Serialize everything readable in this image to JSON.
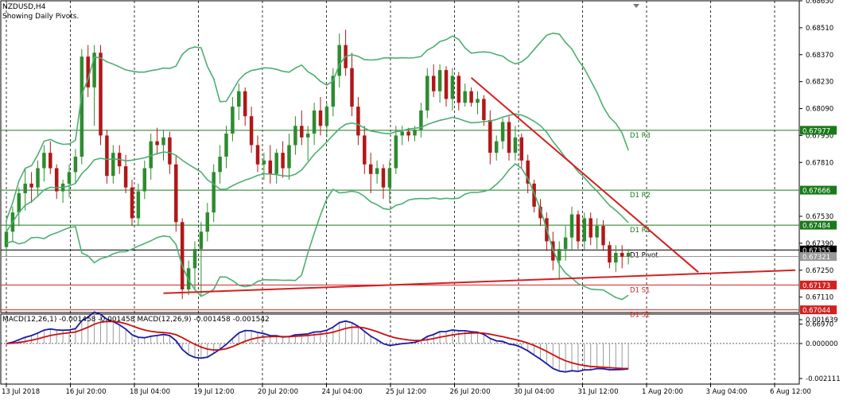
{
  "chart_title": "NZDUSD,H4",
  "chart_subtitle": "Showing Daily Pivots.",
  "macd_label": "MACD(12,26,1) -0.001458 -0.001458 MACD(12,26,9) -0.001458 -0.001542",
  "colors": {
    "bull_candle": "#2e8b2e",
    "bear_candle": "#b01818",
    "bollinger": "#4caf72",
    "resistance": "#1a7a1a",
    "support": "#d42020",
    "pivot": "#000000",
    "trendline": "#d42020",
    "macd_main": "#1a1aa8",
    "macd_signal": "#cc1010",
    "macd_hist": "#9a9a9a"
  },
  "chart_data": {
    "type": "candlestick",
    "symbol": "NZDUSD",
    "timeframe": "H4",
    "y_range": [
      0.6703,
      0.6865
    ],
    "price_ticks": [
      "0.68650",
      "0.68510",
      "0.68370",
      "0.68230",
      "0.68090",
      "0.67950",
      "0.67810",
      "0.67530",
      "0.67390",
      "0.67250",
      "0.67110",
      "0.66970"
    ],
    "time_labels": [
      "13 Jul 2018",
      "16 Jul 20:00",
      "18 Jul 04:00",
      "19 Jul 12:00",
      "20 Jul 20:00",
      "24 Jul 04:00",
      "25 Jul 12:00",
      "26 Jul 20:00",
      "30 Jul 04:00",
      "31 Jul 12:00",
      "1 Aug 20:00",
      "3 Aug 04:00",
      "6 Aug 12:00"
    ],
    "pivot_levels": [
      {
        "name": "D1 R3",
        "value": "0.67977",
        "kind": "resistance"
      },
      {
        "name": "D1 R2",
        "value": "0.67666",
        "kind": "resistance"
      },
      {
        "name": "D1 R1",
        "value": "0.67484",
        "kind": "resistance"
      },
      {
        "name": "D1 Pivot",
        "value": "0.67355",
        "kind": "pivot"
      },
      {
        "name": "D1 S1",
        "value": "0.67173",
        "kind": "support"
      },
      {
        "name": "D1 S2",
        "value": "0.67044",
        "kind": "support"
      }
    ],
    "current_price": "0.67321",
    "candles": [
      [
        0.6737,
        0.675,
        0.6733,
        0.6745
      ],
      [
        0.6745,
        0.6758,
        0.674,
        0.6755
      ],
      [
        0.6755,
        0.6768,
        0.6748,
        0.6765
      ],
      [
        0.6765,
        0.6778,
        0.6756,
        0.677
      ],
      [
        0.677,
        0.6776,
        0.676,
        0.6768
      ],
      [
        0.6768,
        0.6782,
        0.6763,
        0.6778
      ],
      [
        0.6778,
        0.679,
        0.6771,
        0.6786
      ],
      [
        0.6786,
        0.6792,
        0.6775,
        0.6778
      ],
      [
        0.6778,
        0.678,
        0.6762,
        0.6766
      ],
      [
        0.6766,
        0.6772,
        0.676,
        0.677
      ],
      [
        0.677,
        0.678,
        0.6763,
        0.6776
      ],
      [
        0.6776,
        0.6788,
        0.677,
        0.6784
      ],
      [
        0.6784,
        0.684,
        0.678,
        0.6836
      ],
      [
        0.6836,
        0.6842,
        0.6815,
        0.682
      ],
      [
        0.682,
        0.6842,
        0.68,
        0.6838
      ],
      [
        0.6838,
        0.6842,
        0.679,
        0.6795
      ],
      [
        0.6795,
        0.6798,
        0.677,
        0.6774
      ],
      [
        0.6774,
        0.679,
        0.677,
        0.6786
      ],
      [
        0.6786,
        0.679,
        0.6775,
        0.6779
      ],
      [
        0.6779,
        0.6785,
        0.6765,
        0.6768
      ],
      [
        0.6768,
        0.6772,
        0.6748,
        0.6752
      ],
      [
        0.6752,
        0.677,
        0.6748,
        0.6766
      ],
      [
        0.6766,
        0.6782,
        0.6762,
        0.6778
      ],
      [
        0.6778,
        0.6796,
        0.6772,
        0.6792
      ],
      [
        0.6792,
        0.6799,
        0.6785,
        0.679
      ],
      [
        0.679,
        0.6798,
        0.6782,
        0.6794
      ],
      [
        0.6794,
        0.6797,
        0.6775,
        0.678
      ],
      [
        0.678,
        0.6785,
        0.6745,
        0.675
      ],
      [
        0.675,
        0.6752,
        0.671,
        0.6715
      ],
      [
        0.6715,
        0.673,
        0.6712,
        0.6726
      ],
      [
        0.6726,
        0.674,
        0.6715,
        0.6736
      ],
      [
        0.6736,
        0.675,
        0.6712,
        0.6745
      ],
      [
        0.6745,
        0.676,
        0.674,
        0.6755
      ],
      [
        0.6755,
        0.678,
        0.675,
        0.6776
      ],
      [
        0.6776,
        0.679,
        0.677,
        0.6784
      ],
      [
        0.6784,
        0.68,
        0.6778,
        0.6796
      ],
      [
        0.6796,
        0.6815,
        0.6792,
        0.681
      ],
      [
        0.681,
        0.6822,
        0.6803,
        0.6818
      ],
      [
        0.6818,
        0.682,
        0.68,
        0.6805
      ],
      [
        0.6805,
        0.681,
        0.6786,
        0.679
      ],
      [
        0.679,
        0.6795,
        0.6776,
        0.678
      ],
      [
        0.678,
        0.6786,
        0.6772,
        0.6782
      ],
      [
        0.6782,
        0.679,
        0.677,
        0.6775
      ],
      [
        0.6775,
        0.6788,
        0.677,
        0.6786
      ],
      [
        0.6786,
        0.6792,
        0.6773,
        0.6778
      ],
      [
        0.6778,
        0.6796,
        0.6772,
        0.679
      ],
      [
        0.679,
        0.6805,
        0.6785,
        0.68
      ],
      [
        0.68,
        0.6808,
        0.679,
        0.6794
      ],
      [
        0.6794,
        0.68,
        0.6782,
        0.6796
      ],
      [
        0.6796,
        0.6812,
        0.679,
        0.6808
      ],
      [
        0.6808,
        0.6815,
        0.6795,
        0.68
      ],
      [
        0.68,
        0.6812,
        0.6794,
        0.681
      ],
      [
        0.681,
        0.683,
        0.6805,
        0.6826
      ],
      [
        0.6826,
        0.6848,
        0.682,
        0.6842
      ],
      [
        0.6842,
        0.685,
        0.6826,
        0.683
      ],
      [
        0.683,
        0.6838,
        0.6805,
        0.681
      ],
      [
        0.681,
        0.6815,
        0.679,
        0.6795
      ],
      [
        0.6795,
        0.68,
        0.6775,
        0.678
      ],
      [
        0.678,
        0.6786,
        0.6765,
        0.6775
      ],
      [
        0.6775,
        0.6782,
        0.677,
        0.6778
      ],
      [
        0.6778,
        0.678,
        0.6762,
        0.6768
      ],
      [
        0.6768,
        0.6782,
        0.676,
        0.6778
      ],
      [
        0.6778,
        0.68,
        0.6775,
        0.6795
      ],
      [
        0.6795,
        0.68,
        0.679,
        0.6797
      ],
      [
        0.6797,
        0.6799,
        0.6792,
        0.6795
      ],
      [
        0.6795,
        0.68,
        0.6792,
        0.6798
      ],
      [
        0.6798,
        0.6812,
        0.6794,
        0.6808
      ],
      [
        0.6808,
        0.683,
        0.6804,
        0.6826
      ],
      [
        0.6826,
        0.6832,
        0.6815,
        0.6818
      ],
      [
        0.6818,
        0.6832,
        0.6812,
        0.6829
      ],
      [
        0.6829,
        0.6831,
        0.681,
        0.6814
      ],
      [
        0.6814,
        0.683,
        0.6808,
        0.6826
      ],
      [
        0.6826,
        0.6828,
        0.6808,
        0.6812
      ],
      [
        0.6812,
        0.6822,
        0.681,
        0.6818
      ],
      [
        0.6818,
        0.682,
        0.681,
        0.6812
      ],
      [
        0.6812,
        0.6818,
        0.6806,
        0.6814
      ],
      [
        0.6814,
        0.6816,
        0.68,
        0.6803
      ],
      [
        0.6803,
        0.6808,
        0.678,
        0.6786
      ],
      [
        0.6786,
        0.6795,
        0.6782,
        0.6792
      ],
      [
        0.6792,
        0.6804,
        0.6788,
        0.6802
      ],
      [
        0.6802,
        0.6805,
        0.6782,
        0.6786
      ],
      [
        0.6786,
        0.68,
        0.6782,
        0.6794
      ],
      [
        0.6794,
        0.6796,
        0.6778,
        0.6782
      ],
      [
        0.6782,
        0.6785,
        0.6765,
        0.677
      ],
      [
        0.677,
        0.6772,
        0.6755,
        0.6758
      ],
      [
        0.6758,
        0.6762,
        0.6748,
        0.6752
      ],
      [
        0.6752,
        0.6755,
        0.6735,
        0.674
      ],
      [
        0.674,
        0.6745,
        0.6725,
        0.673
      ],
      [
        0.673,
        0.674,
        0.672,
        0.6736
      ],
      [
        0.6736,
        0.6748,
        0.673,
        0.6742
      ],
      [
        0.6742,
        0.6758,
        0.6735,
        0.6754
      ],
      [
        0.6754,
        0.6756,
        0.6736,
        0.674
      ],
      [
        0.674,
        0.6755,
        0.6735,
        0.6752
      ],
      [
        0.6752,
        0.6755,
        0.6738,
        0.6742
      ],
      [
        0.6742,
        0.6752,
        0.6736,
        0.6748
      ],
      [
        0.6748,
        0.6751,
        0.6735,
        0.6738
      ],
      [
        0.6738,
        0.674,
        0.6726,
        0.6729
      ],
      [
        0.6729,
        0.6738,
        0.6724,
        0.6734
      ],
      [
        0.6734,
        0.6738,
        0.6726,
        0.6732
      ],
      [
        0.6732,
        0.6736,
        0.6728,
        0.6734
      ]
    ]
  }
}
